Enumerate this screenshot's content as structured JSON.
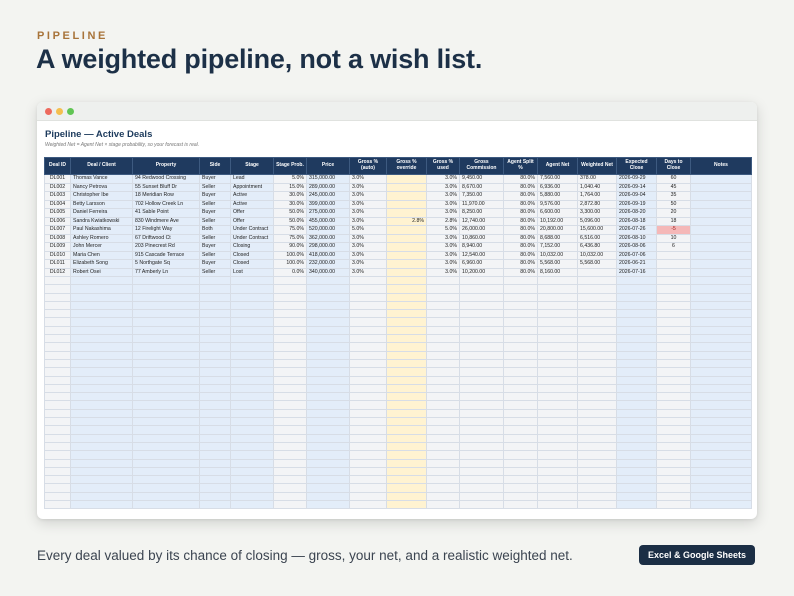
{
  "eyebrow": "PIPELINE",
  "headline": "A weighted pipeline, not a wish list.",
  "footer": {
    "text": "Every deal valued by its chance of closing — gross, your net, and a realistic weighted net.",
    "badge": "Excel & Google Sheets"
  },
  "sheet": {
    "title": "Pipeline — Active Deals",
    "subtitle": "Weighted Net = Agent Net × stage probability, so your forecast is real.",
    "columns": [
      {
        "label": "Deal ID",
        "style": "c-gray",
        "align": "center"
      },
      {
        "label": "Deal / Client",
        "style": "c-blue",
        "align": "left"
      },
      {
        "label": "Property",
        "style": "c-blue",
        "align": "left"
      },
      {
        "label": "Side",
        "style": "c-blue",
        "align": "left"
      },
      {
        "label": "Stage",
        "style": "c-blue",
        "align": "left"
      },
      {
        "label": "Stage Prob.",
        "style": "c-gray",
        "align": "right"
      },
      {
        "label": "Price",
        "style": "c-blue",
        "align": "left"
      },
      {
        "label": "Gross % (auto)",
        "style": "c-gray",
        "align": "left"
      },
      {
        "label": "Gross % override",
        "style": "c-yel",
        "align": "right"
      },
      {
        "label": "Gross % used",
        "style": "c-gray",
        "align": "right"
      },
      {
        "label": "Gross Commission",
        "style": "c-gray",
        "align": "left"
      },
      {
        "label": "Agent Split %",
        "style": "c-gray",
        "align": "right"
      },
      {
        "label": "Agent Net",
        "style": "c-gray",
        "align": "left"
      },
      {
        "label": "Weighted Net",
        "style": "c-gray",
        "align": "left"
      },
      {
        "label": "Expected Close",
        "style": "c-blue",
        "align": "left"
      },
      {
        "label": "Days to Close",
        "style": "c-gray",
        "align": "center"
      },
      {
        "label": "Notes",
        "style": "c-blue",
        "align": "left"
      }
    ],
    "rows": [
      [
        "DL001",
        "Thomas Vance",
        "94 Redwood Crossing",
        "Buyer",
        "Lead",
        "5.0%",
        "315,000.00",
        "3.0%",
        "",
        "3.0%",
        "9,450.00",
        "80.0%",
        "7,560.00",
        "378.00",
        "2026-09-29",
        "60",
        ""
      ],
      [
        "DL002",
        "Nancy Petrova",
        "55 Sunset Bluff Dr",
        "Seller",
        "Appointment",
        "15.0%",
        "289,000.00",
        "3.0%",
        "",
        "3.0%",
        "8,670.00",
        "80.0%",
        "6,936.00",
        "1,040.40",
        "2026-09-14",
        "45",
        ""
      ],
      [
        "DL003",
        "Christopher Ibe",
        "18 Meridian Row",
        "Buyer",
        "Active",
        "30.0%",
        "245,000.00",
        "3.0%",
        "",
        "3.0%",
        "7,350.00",
        "80.0%",
        "5,880.00",
        "1,764.00",
        "2026-09-04",
        "35",
        ""
      ],
      [
        "DL004",
        "Betty Larsson",
        "702 Hollow Creek Ln",
        "Seller",
        "Active",
        "30.0%",
        "399,000.00",
        "3.0%",
        "",
        "3.0%",
        "11,970.00",
        "80.0%",
        "9,576.00",
        "2,872.80",
        "2026-09-19",
        "50",
        ""
      ],
      [
        "DL005",
        "Daniel Ferreira",
        "41 Sable Point",
        "Buyer",
        "Offer",
        "50.0%",
        "275,000.00",
        "3.0%",
        "",
        "3.0%",
        "8,250.00",
        "80.0%",
        "6,600.00",
        "3,300.00",
        "2026-08-20",
        "20",
        ""
      ],
      [
        "DL006",
        "Sandra Kwiatkowski",
        "830 Windmere Ave",
        "Seller",
        "Offer",
        "50.0%",
        "455,000.00",
        "3.0%",
        "2.8%",
        "2.8%",
        "12,740.00",
        "80.0%",
        "10,192.00",
        "5,096.00",
        "2026-08-18",
        "18",
        ""
      ],
      [
        "DL007",
        "Paul Nakashima",
        "12 Firelight Way",
        "Both",
        "Under Contract",
        "75.0%",
        "520,000.00",
        "5.0%",
        "",
        "5.0%",
        "26,000.00",
        "80.0%",
        "20,800.00",
        "15,600.00",
        "2026-07-26",
        "-5",
        ""
      ],
      [
        "DL008",
        "Ashley Romero",
        "67 Driftwood Ct",
        "Seller",
        "Under Contract",
        "75.0%",
        "362,000.00",
        "3.0%",
        "",
        "3.0%",
        "10,860.00",
        "80.0%",
        "8,688.00",
        "6,516.00",
        "2026-08-10",
        "10",
        ""
      ],
      [
        "DL009",
        "John Mercer",
        "203 Pinecrest Rd",
        "Buyer",
        "Closing",
        "90.0%",
        "298,000.00",
        "3.0%",
        "",
        "3.0%",
        "8,940.00",
        "80.0%",
        "7,152.00",
        "6,436.80",
        "2026-08-06",
        "6",
        ""
      ],
      [
        "DL010",
        "Maria Chen",
        "915 Cascade Terrace",
        "Seller",
        "Closed",
        "100.0%",
        "418,000.00",
        "3.0%",
        "",
        "3.0%",
        "12,540.00",
        "80.0%",
        "10,032.00",
        "10,032.00",
        "2026-07-06",
        "",
        ""
      ],
      [
        "DL011",
        "Elizabeth Song",
        "5 Northgate Sq",
        "Buyer",
        "Closed",
        "100.0%",
        "232,000.00",
        "3.0%",
        "",
        "3.0%",
        "6,960.00",
        "80.0%",
        "5,568.00",
        "5,568.00",
        "2026-06-21",
        "",
        ""
      ],
      [
        "DL012",
        "Robert Osei",
        "77 Amberly Ln",
        "Seller",
        "Lost",
        "0.0%",
        "340,000.00",
        "3.0%",
        "",
        "3.0%",
        "10,200.00",
        "80.0%",
        "8,160.00",
        "",
        "2026-07-16",
        "",
        ""
      ]
    ],
    "highlight": {
      "row": 6,
      "col": 15,
      "color": "#f5b8b8"
    }
  }
}
